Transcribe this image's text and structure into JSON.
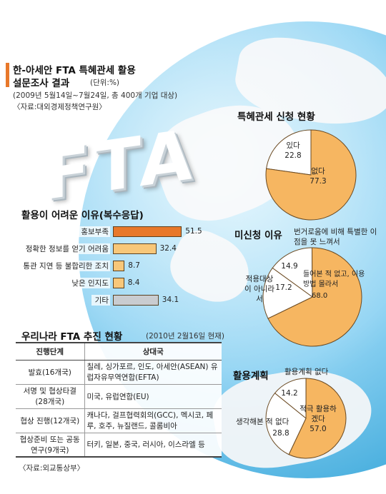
{
  "header": {
    "title_line1": "한-아세안 FTA 특혜관세 활용",
    "title_line2": "설문조사 결과",
    "unit": "(단위:%)",
    "period": "(2009년 5월14일~7월24일, 총 400개 기업 대상)",
    "source": "〈자료:대외경제정책연구원〉"
  },
  "fta_logo": "FTA",
  "colors": {
    "orange": "#e8782a",
    "light_orange": "#f8c779",
    "gray": "#c9ccd0",
    "pie_white": "#ffffff",
    "pie_orange": "#f6b661",
    "ocean": "#4fb2e0"
  },
  "chart_data": [
    {
      "type": "bar",
      "title": "활용이 어려운 이유(복수응답)",
      "categories": [
        "홍보부족",
        "정확한 정보를 얻기 어려움",
        "통관 지연 등 불합리한 조치",
        "낮은 인지도",
        "기타"
      ],
      "values": [
        51.5,
        32.4,
        8.7,
        8.4,
        34.1
      ],
      "value_labels": [
        "51.5",
        "32.4",
        "8.7",
        "8.4",
        "34.1"
      ],
      "colors": [
        "#e8782a",
        "#f8c779",
        "#f8c779",
        "#f8c779",
        "#c9ccd0"
      ]
    },
    {
      "type": "pie",
      "title": "특혜관세 신청 현황",
      "slices": [
        {
          "label": "있다",
          "value": 22.8,
          "value_label": "22.8"
        },
        {
          "label": "없다",
          "value": 77.3,
          "value_label": "77.3"
        }
      ]
    },
    {
      "type": "pie",
      "title": "미신청 이유",
      "slices": [
        {
          "label": "번거로움에 비해 특별한 이점을 못 느껴서",
          "value": 14.9,
          "value_label": "14.9"
        },
        {
          "label": "들어본 적 없고, 이용방법 몰라서",
          "value": 68.0,
          "value_label": "68.0"
        },
        {
          "label": "적용대상이 아니라서",
          "value": 17.2,
          "value_label": "17.2"
        }
      ]
    },
    {
      "type": "pie",
      "title": "활용계획",
      "slices": [
        {
          "label": "활용계획 없다",
          "value": 14.2,
          "value_label": "14.2"
        },
        {
          "label": "적극 활용하겠다",
          "value": 57.0,
          "value_label": "57.0"
        },
        {
          "label": "생각해본 적 없다",
          "value": 28.8,
          "value_label": "28.8"
        }
      ]
    }
  ],
  "fta_status": {
    "title": "우리나라 FTA 추진 현황",
    "date": "(2010년 2월16일 현재)",
    "headers": [
      "진행단계",
      "상대국"
    ],
    "rows": [
      {
        "stage": "발효(16개국)",
        "partners": "칠레, 싱가포르, 인도, 아세안(ASEAN) 유럽자유무역연합(EFTA)"
      },
      {
        "stage": "서명 및 협상타결 (28개국)",
        "partners": "미국, 유럽연합(EU)"
      },
      {
        "stage": "협상 진행(12개국)",
        "partners": "캐나다, 걸프협력회의(GCC), 멕시코, 페루, 호주, 뉴질랜드, 콜롬비아"
      },
      {
        "stage": "협상준비 또는 공동연구(9개국)",
        "partners": "터키, 일본, 중국, 러시아, 이스라엘 등"
      }
    ],
    "source": "〈자료:외교통상부〉"
  }
}
